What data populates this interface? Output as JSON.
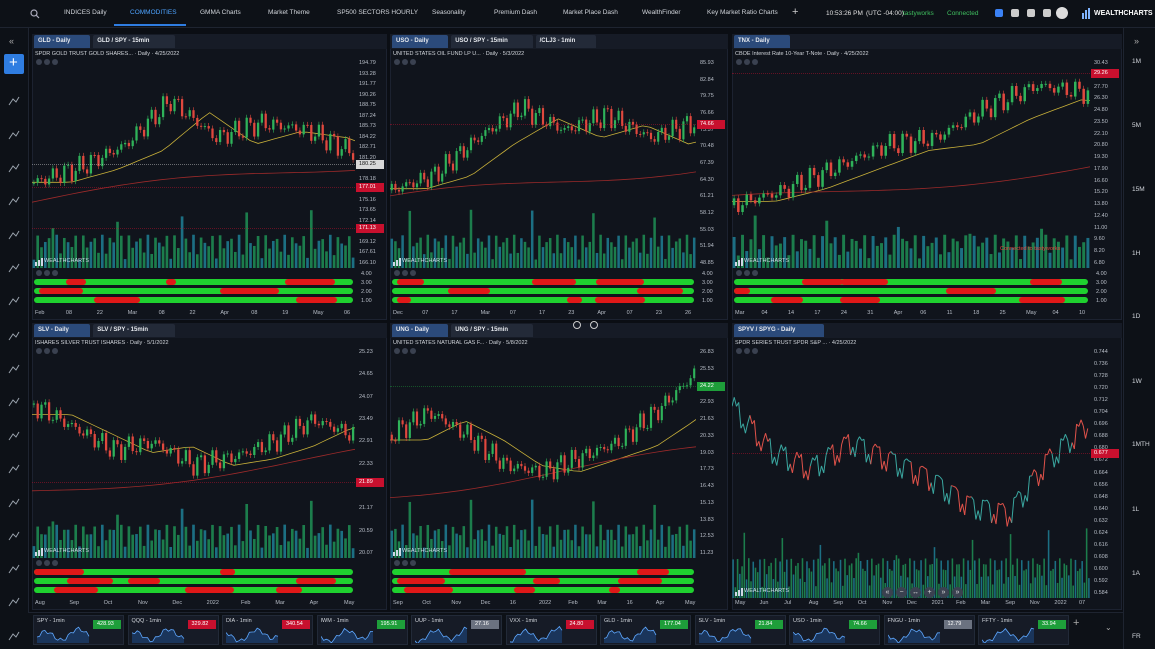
{
  "nav": {
    "tabs": [
      "INDICES Daily",
      "COMMODITIES",
      "GMMA Charts",
      "Market Theme",
      "SP500 SECTORS HOURLY",
      "Seasonality",
      "Premium Dash",
      "Market Place Dash",
      "WealthFinder",
      "Key Market Ratio Charts"
    ],
    "active": 1,
    "time": "10:53:26 PM",
    "timezone": "(UTC -04:00)",
    "broker": "tastyworks",
    "status": "Connected",
    "logo": "WEALTHCHARTS"
  },
  "timeframes": [
    "1M",
    "5M",
    "15M",
    "1H",
    "1D",
    "1W",
    "1MTH",
    "1L",
    "1A",
    "FR"
  ],
  "panels": [
    {
      "tabs": [
        "GLD - Daily",
        "GLD / SPY - 15min"
      ],
      "subtitle": "SPDR GOLD TRUST GOLD SHARES... · Daily · 4/25/2022",
      "prices": [
        "194.79",
        "193.28",
        "191.77",
        "190.26",
        "188.75",
        "187.24",
        "185.73",
        "184.22",
        "182.71",
        "181.20",
        "179.69",
        "178.18",
        "176.67",
        "175.16",
        "173.65",
        "172.14",
        "170.63",
        "169.12",
        "167.61",
        "166.10"
      ],
      "tags": [
        {
          "label": "180.25",
          "color": "#d8d8d8"
        },
        {
          "label": "177.01",
          "color": "#c8102e"
        },
        {
          "label": "171.13",
          "color": "#c8102e"
        }
      ],
      "indicator_labels": [
        "4.00",
        "3.00",
        "2.00",
        "1.00"
      ],
      "dates": [
        "Feb",
        "08",
        "22",
        "Mar",
        "08",
        "22",
        "Apr",
        "08",
        "19",
        "May",
        "06"
      ]
    },
    {
      "tabs": [
        "USO - Daily",
        "USO / SPY - 15min",
        "/CLJ3 - 1min"
      ],
      "subtitle": "UNITED STATES OIL FUND LP U... · Daily · 5/3/2022",
      "prices": [
        "85.93",
        "82.84",
        "79.75",
        "76.66",
        "73.57",
        "70.48",
        "67.39",
        "64.30",
        "61.21",
        "58.12",
        "55.03",
        "51.94",
        "48.85"
      ],
      "tags": [
        {
          "label": "74.66",
          "color": "#c8102e"
        }
      ],
      "indicator_labels": [
        "4.00",
        "3.00",
        "2.00",
        "1.00"
      ],
      "dates": [
        "Dec",
        "07",
        "17",
        "Mar",
        "07",
        "17",
        "23",
        "Apr",
        "07",
        "23",
        "26"
      ]
    },
    {
      "tabs": [
        "TNX - Daily"
      ],
      "subtitle": "CBOE Interest Rate 10-Year T-Note · Daily · 4/25/2022",
      "prices": [
        "30.43",
        "29.09",
        "27.70",
        "26.30",
        "24.80",
        "23.50",
        "22.10",
        "20.80",
        "19.30",
        "17.90",
        "16.60",
        "15.20",
        "13.80",
        "12.40",
        "11.00",
        "9.60",
        "8.20",
        "6.80"
      ],
      "tags": [
        {
          "label": "29.26",
          "color": "#c8102e"
        }
      ],
      "note": "Connected to tastyworks",
      "indicator_labels": [
        "4.00",
        "3.00",
        "2.00",
        "1.00"
      ],
      "dates": [
        "Mar",
        "04",
        "14",
        "17",
        "24",
        "31",
        "Apr",
        "06",
        "11",
        "18",
        "25",
        "May",
        "04",
        "10"
      ]
    },
    {
      "tabs": [
        "SLV - Daily",
        "SLV / SPY - 15min"
      ],
      "subtitle": "ISHARES SILVER TRUST ISHARES · Daily · 5/1/2022",
      "prices": [
        "25.23",
        "24.65",
        "24.07",
        "23.49",
        "22.91",
        "22.33",
        "21.75",
        "21.17",
        "20.59",
        "20.07"
      ],
      "tags": [
        {
          "label": "21.89",
          "color": "#c8102e"
        }
      ],
      "dates": [
        "Aug",
        "Sep",
        "Oct",
        "Nov",
        "Dec",
        "2022",
        "Feb",
        "Mar",
        "Apr",
        "May"
      ]
    },
    {
      "tabs": [
        "UNG - Daily",
        "UNG / SPY - 15min"
      ],
      "subtitle": "UNITED STATES NATURAL GAS F... · Daily · 5/8/2022",
      "prices": [
        "26.83",
        "25.53",
        "24.23",
        "22.93",
        "21.63",
        "20.33",
        "19.03",
        "17.73",
        "16.43",
        "15.13",
        "13.83",
        "12.53",
        "11.23"
      ],
      "tags": [
        {
          "label": "24.22",
          "color": "#1e9e3a"
        }
      ],
      "dates": [
        "Sep",
        "Oct",
        "Nov",
        "Dec",
        "16",
        "2022",
        "Feb",
        "Mar",
        "16",
        "Apr",
        "May"
      ]
    },
    {
      "tabs": [
        "SPYV / SPYG - Daily"
      ],
      "subtitle": "SPDR SERIES TRUST SPDR S&P ... · 4/25/2022",
      "prices": [
        "0.744",
        "0.736",
        "0.728",
        "0.720",
        "0.712",
        "0.704",
        "0.696",
        "0.688",
        "0.680",
        "0.672",
        "0.664",
        "0.656",
        "0.648",
        "0.640",
        "0.632",
        "0.624",
        "0.616",
        "0.608",
        "0.600",
        "0.592",
        "0.584"
      ],
      "tags": [
        {
          "label": "0.677",
          "color": "#c8102e"
        }
      ],
      "dates": [
        "May",
        "Jun",
        "Jul",
        "Aug",
        "Sep",
        "Oct",
        "Nov",
        "Dec",
        "2021",
        "Feb",
        "Mar",
        "Sep",
        "Nov",
        "2022",
        "07"
      ]
    }
  ],
  "tickers": [
    {
      "name": "SPY - 1min",
      "price": "428.93",
      "color": "#1e9e3a"
    },
    {
      "name": "QQQ - 1min",
      "price": "329.82",
      "color": "#c8102e"
    },
    {
      "name": "DIA - 1min",
      "price": "340.54",
      "color": "#c8102e"
    },
    {
      "name": "IWM - 1min",
      "price": "195.91",
      "color": "#1e9e3a"
    },
    {
      "name": "UUP - 1min",
      "price": "27.16",
      "color": "#6b7280"
    },
    {
      "name": "VXX - 1min",
      "price": "24.80",
      "color": "#c8102e"
    },
    {
      "name": "GLD - 1min",
      "price": "177.04",
      "color": "#1e9e3a"
    },
    {
      "name": "SLV - 1min",
      "price": "21.84",
      "color": "#1e9e3a"
    },
    {
      "name": "USO - 1min",
      "price": "74.66",
      "color": "#1e9e3a"
    },
    {
      "name": "FNGU - 1min",
      "price": "12.79",
      "color": "#6b7280"
    },
    {
      "name": "FFTY - 1min",
      "price": "33.94",
      "color": "#1e9e3a"
    }
  ]
}
